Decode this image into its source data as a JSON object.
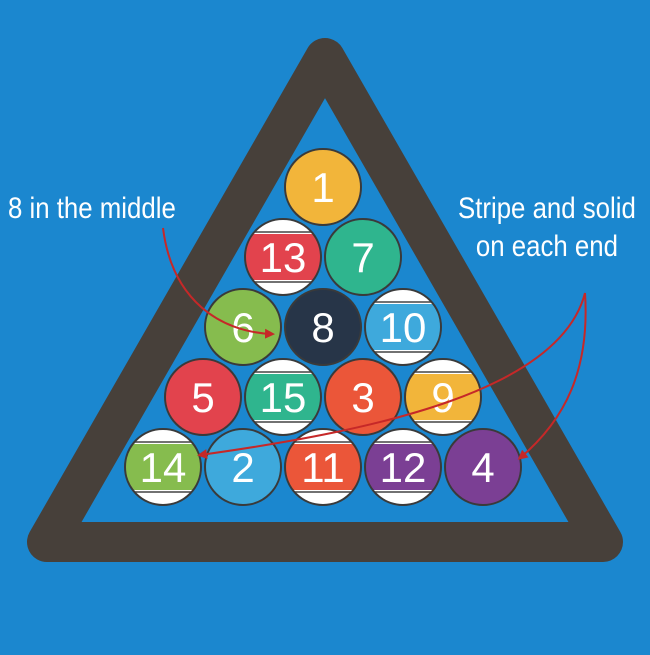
{
  "colors": {
    "background": "#1b87cf",
    "rack": "#47403a",
    "rack_inner": "#1b87cf",
    "arrow": "#c62828",
    "ball_outline": "#3a3a3a",
    "stripe_base": "#ffffff"
  },
  "annotations": {
    "left": "8 in the middle",
    "right_line1": "Stripe and solid",
    "right_line2": "on each end"
  },
  "rows": [
    [
      {
        "number": "1",
        "color": "#f2b53a",
        "stripe": false
      }
    ],
    [
      {
        "number": "13",
        "color": "#e2434d",
        "stripe": true
      },
      {
        "number": "7",
        "color": "#2fb58e",
        "stripe": false
      }
    ],
    [
      {
        "number": "6",
        "color": "#86bc4e",
        "stripe": false
      },
      {
        "number": "8",
        "color": "#273548",
        "stripe": false
      },
      {
        "number": "10",
        "color": "#3ea9dc",
        "stripe": true
      }
    ],
    [
      {
        "number": "5",
        "color": "#e2434d",
        "stripe": false
      },
      {
        "number": "15",
        "color": "#2fb58e",
        "stripe": true
      },
      {
        "number": "3",
        "color": "#eb5639",
        "stripe": false
      },
      {
        "number": "9",
        "color": "#f2b53a",
        "stripe": true
      }
    ],
    [
      {
        "number": "14",
        "color": "#86bc4e",
        "stripe": true
      },
      {
        "number": "2",
        "color": "#3ea9dc",
        "stripe": false
      },
      {
        "number": "11",
        "color": "#eb5639",
        "stripe": true
      },
      {
        "number": "12",
        "color": "#7b3f94",
        "stripe": true
      },
      {
        "number": "4",
        "color": "#7b3f94",
        "stripe": false
      }
    ]
  ]
}
